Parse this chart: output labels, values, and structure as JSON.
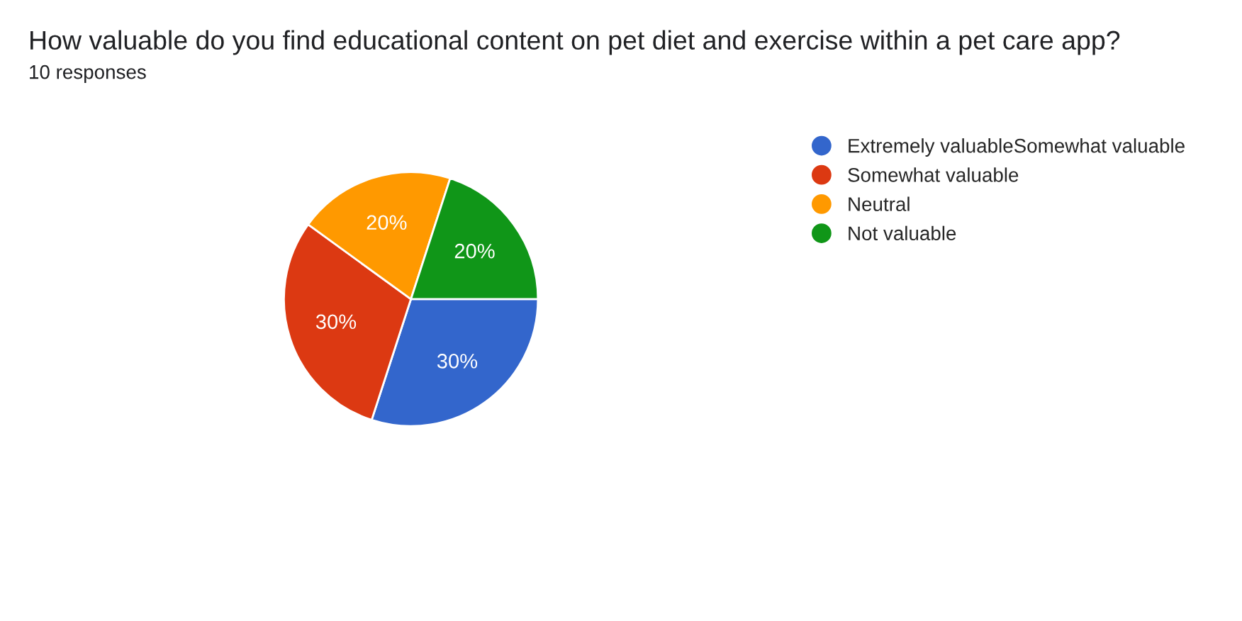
{
  "chart_data": {
    "type": "pie",
    "title": "How valuable do you find educational content on pet diet and exercise within a pet care app?",
    "subtitle": "10 responses",
    "categories": [
      "Extremely valuableSomewhat valuable",
      "Somewhat valuable",
      "Neutral",
      "Not valuable"
    ],
    "values": [
      30,
      30,
      20,
      20
    ],
    "colors": [
      "#3366cc",
      "#dc3912",
      "#ff9900",
      "#109618"
    ],
    "value_labels": [
      "30%",
      "30%",
      "20%",
      "20%"
    ],
    "legend": "right"
  }
}
